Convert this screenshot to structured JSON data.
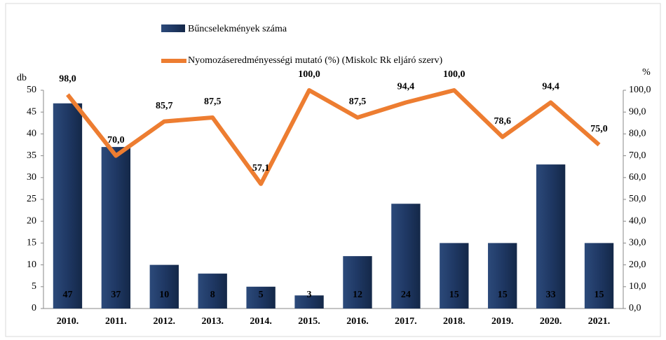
{
  "chart_data": {
    "type": "bar_line",
    "categories": [
      "2010.",
      "2011.",
      "2012.",
      "2013.",
      "2014.",
      "2015.",
      "2016.",
      "2017.",
      "2018.",
      "2019.",
      "2020.",
      "2021."
    ],
    "series": [
      {
        "name": "Bűncselekmények száma",
        "color": "#1f3864",
        "type": "bar",
        "values": [
          47,
          37,
          10,
          8,
          5,
          3,
          12,
          24,
          15,
          15,
          33,
          15
        ]
      },
      {
        "name": "Nyomozáseredményességi mutató (%) (Miskolc Rk eljáró szerv)",
        "color": "#ed7d31",
        "type": "line",
        "axis": "y2",
        "values": [
          98.0,
          70.0,
          85.7,
          87.5,
          57.1,
          100.0,
          87.5,
          94.4,
          100.0,
          78.6,
          94.4,
          75.0
        ],
        "value_labels": [
          "98,0",
          "70,0",
          "85,7",
          "87,5",
          "57,1",
          "100,0",
          "87,5",
          "94,4",
          "100,0",
          "78,6",
          "94,4",
          "75,0"
        ]
      }
    ],
    "ylabel": "db",
    "y2label": "%",
    "ylim": [
      0,
      50
    ],
    "yticks": [
      0,
      5,
      10,
      15,
      20,
      25,
      30,
      35,
      40,
      45,
      50
    ],
    "y2lim": [
      0,
      100
    ],
    "y2ticks": [
      {
        "value": 0,
        "label": "0,0"
      },
      {
        "value": 10,
        "label": "10,0"
      },
      {
        "value": 20,
        "label": "20,0"
      },
      {
        "value": 30,
        "label": "30,0"
      },
      {
        "value": 40,
        "label": "40,0"
      },
      {
        "value": 50,
        "label": "50,0"
      },
      {
        "value": 60,
        "label": "60,0"
      },
      {
        "value": 70,
        "label": "70,0"
      },
      {
        "value": 80,
        "label": "80,0"
      },
      {
        "value": 90,
        "label": "90,0"
      },
      {
        "value": 100,
        "label": "100,0"
      }
    ]
  }
}
